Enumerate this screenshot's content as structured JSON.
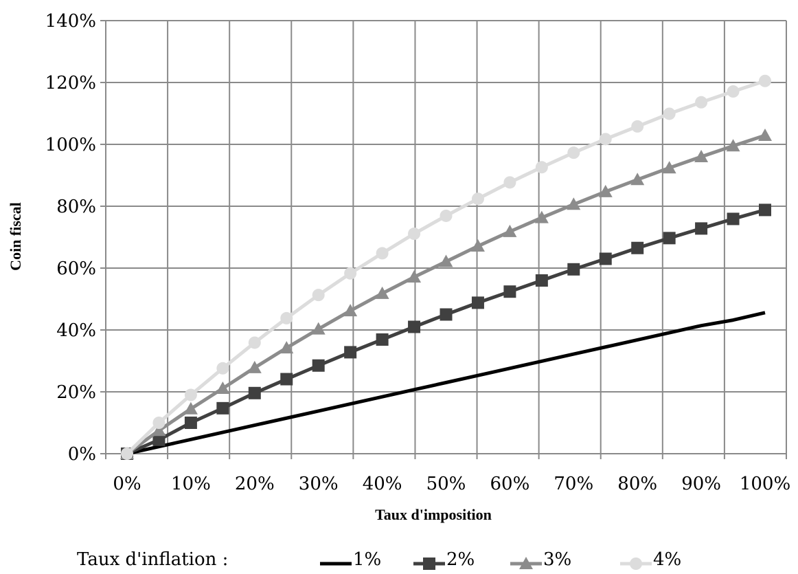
{
  "chart_data": {
    "type": "line",
    "title": "",
    "xlabel": "Taux d'imposition",
    "ylabel": "Coin fiscal",
    "xlim": [
      0,
      100
    ],
    "ylim": [
      0,
      140
    ],
    "x_ticks": [
      "0%",
      "10%",
      "20%",
      "30%",
      "40%",
      "50%",
      "60%",
      "70%",
      "80%",
      "90%",
      "100%"
    ],
    "y_ticks": [
      "0%",
      "20%",
      "40%",
      "60%",
      "80%",
      "100%",
      "120%",
      "140%"
    ],
    "grid": true,
    "legend_title": "Taux d'inflation :",
    "legend_position": "bottom",
    "x": [
      0,
      5,
      10,
      15,
      20,
      25,
      30,
      35,
      40,
      45,
      50,
      55,
      60,
      65,
      70,
      75,
      80,
      85,
      90,
      95,
      100
    ],
    "series": [
      {
        "name": "1%",
        "marker": "none",
        "color": "#000000",
        "values": [
          0,
          2.3,
          4.6,
          6.9,
          9.2,
          11.5,
          13.8,
          16.1,
          18.4,
          20.7,
          23.0,
          25.3,
          27.6,
          29.9,
          32.2,
          34.5,
          36.8,
          39.1,
          41.4,
          43.2,
          45.6
        ]
      },
      {
        "name": "2%",
        "marker": "square",
        "color": "#404040",
        "values": [
          0,
          4.5,
          10,
          14.7,
          19.6,
          24.1,
          28.5,
          32.8,
          36.9,
          41,
          45,
          48.8,
          52.4,
          56,
          59.6,
          63,
          66.5,
          69.7,
          72.8,
          75.9,
          78.8
        ]
      },
      {
        "name": "3%",
        "marker": "triangle",
        "color": "#8c8c8c",
        "values": [
          0,
          7.5,
          14.5,
          21.1,
          27.8,
          34.2,
          40.3,
          46.2,
          51.8,
          57.1,
          62.1,
          67.1,
          71.8,
          76.3,
          80.6,
          84.7,
          88.6,
          92.4,
          96,
          99.5,
          102.9
        ]
      },
      {
        "name": "4%",
        "marker": "circle",
        "color": "#dcdcdc",
        "values": [
          0,
          10,
          19,
          27.6,
          35.9,
          43.8,
          51.3,
          58.3,
          64.8,
          71.1,
          76.9,
          82.4,
          87.7,
          92.6,
          97.3,
          101.7,
          105.8,
          109.9,
          113.6,
          117.1,
          120.5
        ]
      }
    ]
  }
}
